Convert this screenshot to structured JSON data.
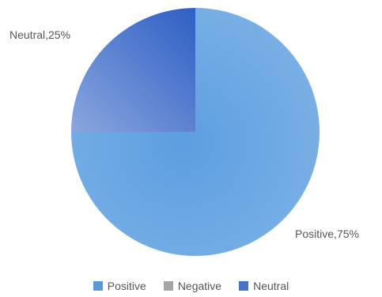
{
  "chart_data": {
    "type": "pie",
    "title": "",
    "categories": [
      "Positive",
      "Negative",
      "Neutral"
    ],
    "values": [
      75,
      0,
      25
    ],
    "unit": "%",
    "colors": {
      "Positive": "#5b9bd5",
      "Negative": "#a5a5a5",
      "Neutral": "#4472c4"
    },
    "data_labels": {
      "Positive": "Positive,75%",
      "Neutral": "Neutral,25%"
    },
    "legend_position": "bottom",
    "start_angle_deg": 0,
    "direction": "clockwise"
  }
}
